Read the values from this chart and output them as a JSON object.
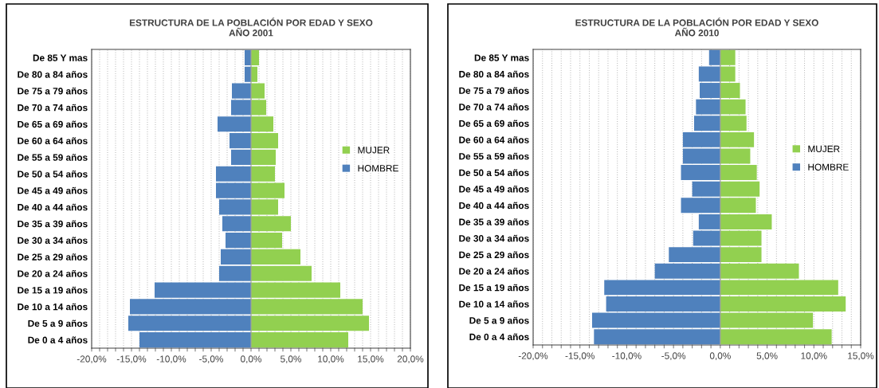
{
  "chart_data": [
    {
      "type": "bar",
      "orientation": "horizontal",
      "stacked": true,
      "title": "ESTRUCTURA DE LA POBLACIÓN POR EDAD Y SEXO\nAÑO 2001",
      "categories": [
        "De 85 Y mas",
        "De 80 a 84 años",
        "De 75 a 79 años",
        "De 70 a 74 años",
        "De 65 a 69 años",
        "De 60 a 64 años",
        "De 55 a 59 años",
        "De 50 a 54 años",
        "De 45 a 49 años",
        "De 40 a 44 años",
        "De 35 a 39 años",
        "De 30 a 34 años",
        "De 25 a 29 años",
        "De 20 a 24 años",
        "De 15 a 19 años",
        "De 10 a 14 años",
        "De 5 a 9 años",
        "De 0 a 4 años"
      ],
      "series": [
        {
          "name": "MUJER",
          "color": "#92d050",
          "values": [
            1.0,
            0.8,
            1.7,
            1.9,
            2.8,
            3.4,
            3.1,
            3.0,
            4.2,
            3.4,
            5.0,
            3.9,
            6.2,
            7.6,
            11.2,
            14.0,
            14.8,
            12.2
          ]
        },
        {
          "name": "HOMBRE",
          "color": "#4f81bd",
          "values": [
            -0.8,
            -0.8,
            -2.4,
            -2.5,
            -4.2,
            -2.7,
            -2.5,
            -4.4,
            -4.4,
            -4.0,
            -3.6,
            -3.2,
            -3.8,
            -4.0,
            -12.1,
            -15.2,
            -15.4,
            -14.0
          ]
        }
      ],
      "xlim": [
        -20,
        20
      ],
      "xticks": [
        {
          "value": -20,
          "label": "-20,0%"
        },
        {
          "value": -19,
          "label": null
        },
        {
          "value": -18,
          "label": null
        },
        {
          "value": -17,
          "label": null
        },
        {
          "value": -16,
          "label": null
        },
        {
          "value": -15,
          "label": "-15,0%"
        },
        {
          "value": -14,
          "label": null
        },
        {
          "value": -13,
          "label": null
        },
        {
          "value": -12,
          "label": null
        },
        {
          "value": -11,
          "label": null
        },
        {
          "value": -10,
          "label": "-10,0%"
        },
        {
          "value": -9,
          "label": null
        },
        {
          "value": -8,
          "label": null
        },
        {
          "value": -7,
          "label": null
        },
        {
          "value": -6,
          "label": null
        },
        {
          "value": -5,
          "label": "-5,0%"
        },
        {
          "value": -4,
          "label": null
        },
        {
          "value": -3,
          "label": null
        },
        {
          "value": -2,
          "label": null
        },
        {
          "value": -1,
          "label": null
        },
        {
          "value": 0,
          "label": "0,0%"
        },
        {
          "value": 1,
          "label": null
        },
        {
          "value": 2,
          "label": null
        },
        {
          "value": 3,
          "label": null
        },
        {
          "value": 4,
          "label": null
        },
        {
          "value": 5,
          "label": "5,0%"
        },
        {
          "value": 6,
          "label": null
        },
        {
          "value": 7,
          "label": null
        },
        {
          "value": 8,
          "label": null
        },
        {
          "value": 9,
          "label": null
        },
        {
          "value": 10,
          "label": "10,0%"
        },
        {
          "value": 11,
          "label": null
        },
        {
          "value": 12,
          "label": null
        },
        {
          "value": 13,
          "label": null
        },
        {
          "value": 14,
          "label": null
        },
        {
          "value": 15,
          "label": "15,0%"
        },
        {
          "value": 16,
          "label": null
        },
        {
          "value": 17,
          "label": null
        },
        {
          "value": 18,
          "label": null
        },
        {
          "value": 19,
          "label": null
        },
        {
          "value": 20,
          "label": "20,0%"
        }
      ],
      "grid": "x",
      "legend": "right"
    },
    {
      "type": "bar",
      "orientation": "horizontal",
      "stacked": true,
      "title": "ESTRUCTURA DE LA POBLACIÓN POR EDAD Y SEXO\nAÑO 2010",
      "categories": [
        "De 85 Y mas",
        "De 80 a 84 años",
        "De 75 a 79 años",
        "De 70 a 74 años",
        "De 65 a 69 años",
        "De 60 a 64 años",
        "De 55 a 59 años",
        "De 50 a 54 años",
        "De 45 a 49 años",
        "De 40 a 44 años",
        "De 35 a 39 años",
        "De 30 a 34 años",
        "De 25 a 29 años",
        "De 20 a 24 años",
        "De 15 a 19 años",
        "De 10 a 14 años",
        "De 5 a 9 años",
        "De 0 a 4 años"
      ],
      "series": [
        {
          "name": "MUJER",
          "color": "#92d050",
          "values": [
            1.6,
            1.6,
            2.1,
            2.7,
            2.8,
            3.6,
            3.2,
            3.9,
            4.2,
            3.8,
            5.5,
            4.4,
            4.4,
            8.4,
            12.6,
            13.4,
            9.9,
            11.9
          ]
        },
        {
          "name": "HOMBRE",
          "color": "#4f81bd",
          "values": [
            -1.2,
            -2.3,
            -2.2,
            -2.6,
            -2.8,
            -4.0,
            -4.0,
            -4.2,
            -3.0,
            -4.2,
            -2.3,
            -2.9,
            -5.5,
            -7.0,
            -12.4,
            -12.2,
            -13.7,
            -13.5
          ]
        }
      ],
      "xlim": [
        -20,
        15
      ],
      "xticks": [
        {
          "value": -20,
          "label": "-20,0%"
        },
        {
          "value": -19,
          "label": null
        },
        {
          "value": -18,
          "label": null
        },
        {
          "value": -17,
          "label": null
        },
        {
          "value": -16,
          "label": null
        },
        {
          "value": -15,
          "label": "-15,0%"
        },
        {
          "value": -14,
          "label": null
        },
        {
          "value": -13,
          "label": null
        },
        {
          "value": -12,
          "label": null
        },
        {
          "value": -11,
          "label": null
        },
        {
          "value": -10,
          "label": "-10,0%"
        },
        {
          "value": -9,
          "label": null
        },
        {
          "value": -8,
          "label": null
        },
        {
          "value": -7,
          "label": null
        },
        {
          "value": -6,
          "label": null
        },
        {
          "value": -5,
          "label": "-5,0%"
        },
        {
          "value": -4,
          "label": null
        },
        {
          "value": -3,
          "label": null
        },
        {
          "value": -2,
          "label": null
        },
        {
          "value": -1,
          "label": null
        },
        {
          "value": 0,
          "label": "0,0%"
        },
        {
          "value": 1,
          "label": null
        },
        {
          "value": 2,
          "label": null
        },
        {
          "value": 3,
          "label": null
        },
        {
          "value": 4,
          "label": null
        },
        {
          "value": 5,
          "label": "5,0%"
        },
        {
          "value": 6,
          "label": null
        },
        {
          "value": 7,
          "label": null
        },
        {
          "value": 8,
          "label": null
        },
        {
          "value": 9,
          "label": null
        },
        {
          "value": 10,
          "label": "10,0%"
        },
        {
          "value": 11,
          "label": null
        },
        {
          "value": 12,
          "label": null
        },
        {
          "value": 13,
          "label": null
        },
        {
          "value": 14,
          "label": null
        },
        {
          "value": 15,
          "label": "15,0%"
        }
      ],
      "grid": "x",
      "legend": "right"
    }
  ]
}
